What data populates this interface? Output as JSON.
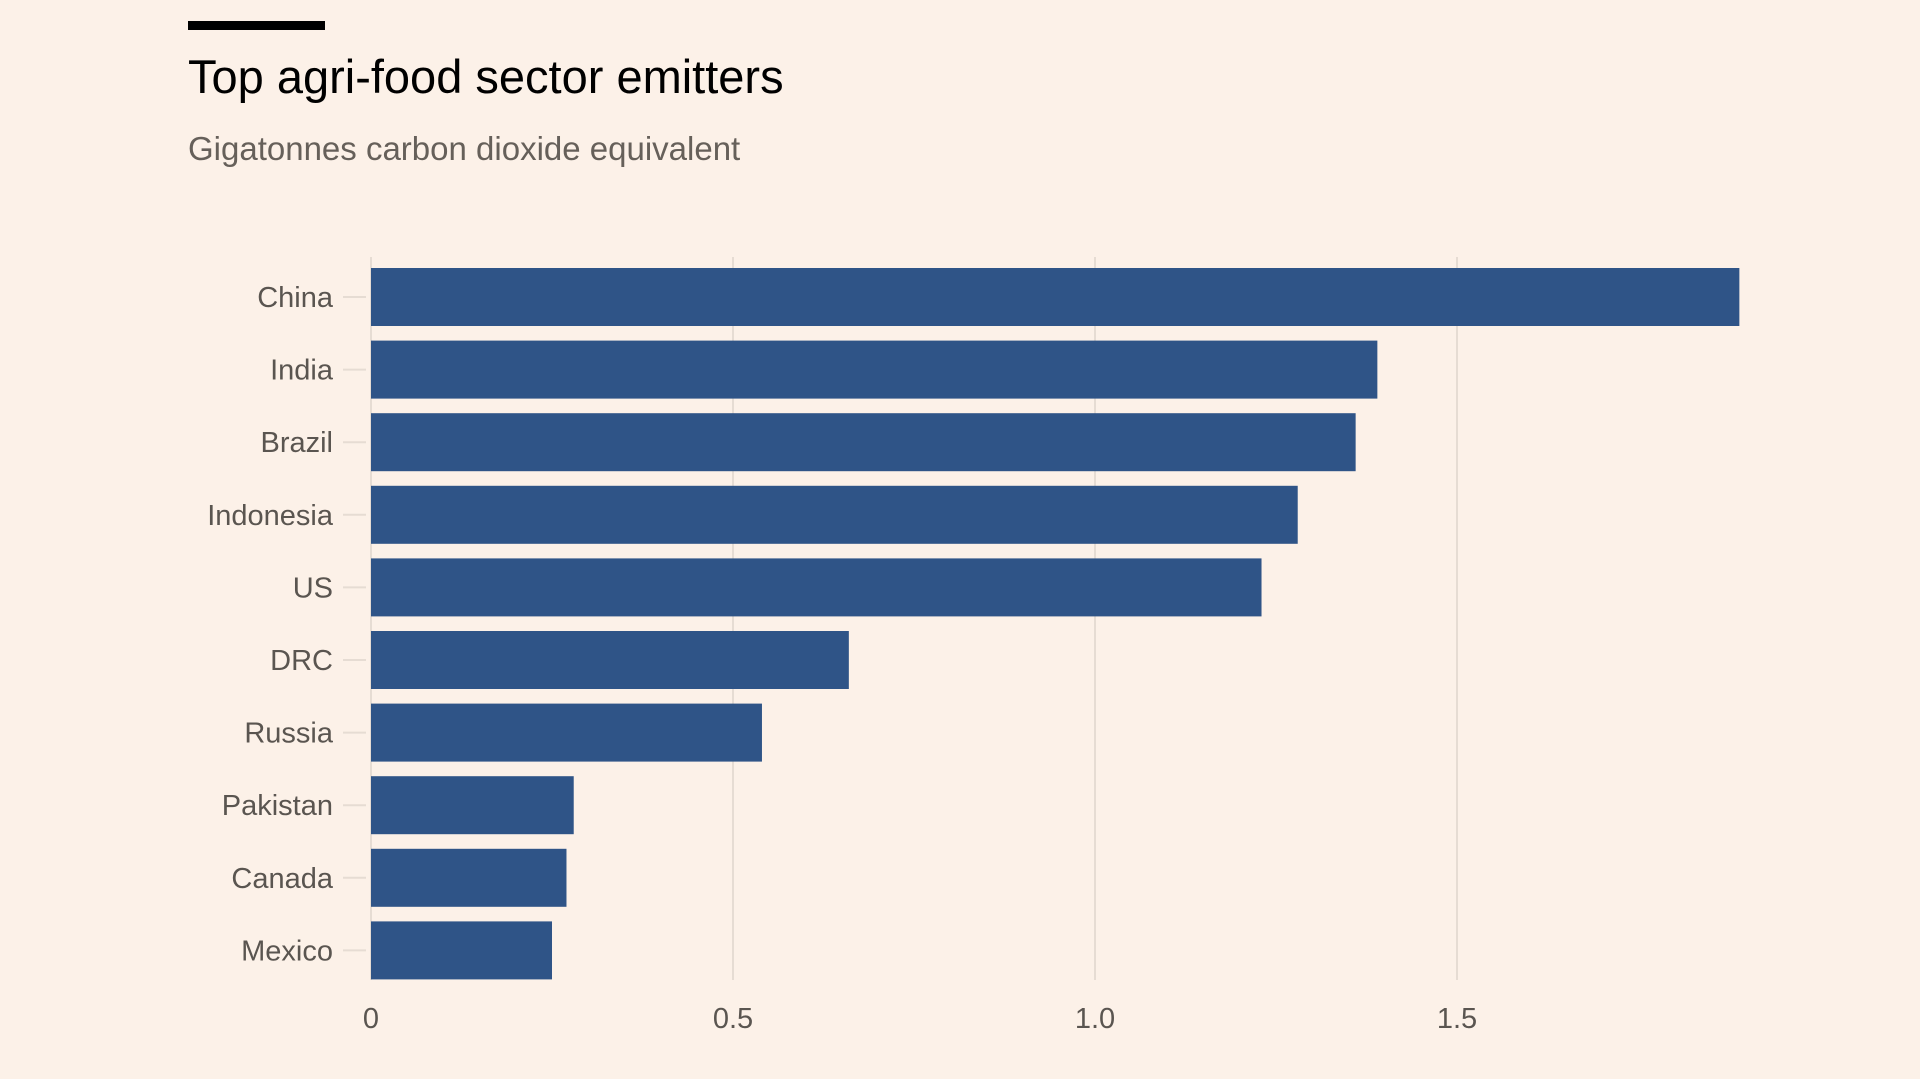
{
  "header": {
    "title": "Top agri-food sector emitters",
    "subtitle": "Gigatonnes carbon dioxide equivalent"
  },
  "colors": {
    "background": "#fcf1e8",
    "bar": "#2f5487",
    "grid": "#e6dcd3",
    "text": "#5a5550"
  },
  "chart_data": {
    "type": "bar",
    "orientation": "horizontal",
    "title": "Top agri-food sector emitters",
    "subtitle": "Gigatonnes carbon dioxide equivalent",
    "categories": [
      "China",
      "India",
      "Brazil",
      "Indonesia",
      "US",
      "DRC",
      "Russia",
      "Pakistan",
      "Canada",
      "Mexico"
    ],
    "values": [
      1.89,
      1.39,
      1.36,
      1.28,
      1.23,
      0.66,
      0.54,
      0.28,
      0.27,
      0.25
    ],
    "xlim": [
      0,
      1.89
    ],
    "xticks": [
      0,
      0.5,
      1.0,
      1.5
    ],
    "xtick_labels": [
      "0",
      "0.5",
      "1.0",
      "1.5"
    ],
    "grid": true,
    "legend": false
  }
}
